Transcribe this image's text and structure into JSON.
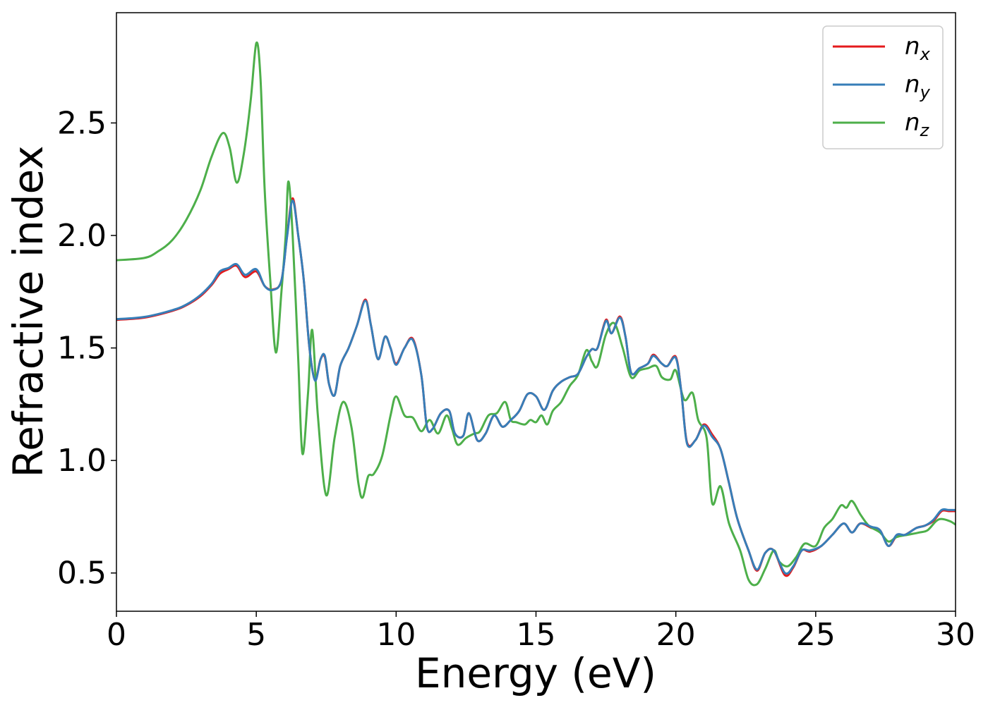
{
  "chart_data": {
    "type": "line",
    "xlabel": "Energy (eV)",
    "ylabel": "Refractive index",
    "xlim": [
      0,
      30
    ],
    "ylim": [
      0.33,
      2.99
    ],
    "xticks": [
      0,
      5,
      10,
      15,
      20,
      25,
      30
    ],
    "xtick_labels": [
      "0",
      "5",
      "10",
      "15",
      "20",
      "25",
      "30"
    ],
    "yticks": [
      0.5,
      1.0,
      1.5,
      2.0,
      2.5
    ],
    "ytick_labels": [
      "0.5",
      "1.0",
      "1.5",
      "2.0",
      "2.5"
    ],
    "grid": false,
    "legend_position": "top-right",
    "series": [
      {
        "name": "n_x",
        "label_main": "n",
        "label_sub": "x",
        "color": "#e41a1c",
        "points": [
          [
            0,
            1.625
          ],
          [
            1,
            1.635
          ],
          [
            2,
            1.665
          ],
          [
            2.5,
            1.69
          ],
          [
            3,
            1.73
          ],
          [
            3.4,
            1.78
          ],
          [
            3.7,
            1.83
          ],
          [
            4.0,
            1.85
          ],
          [
            4.3,
            1.865
          ],
          [
            4.6,
            1.815
          ],
          [
            5.0,
            1.84
          ],
          [
            5.3,
            1.775
          ],
          [
            5.6,
            1.76
          ],
          [
            5.9,
            1.8
          ],
          [
            6.1,
            2.0
          ],
          [
            6.3,
            2.165
          ],
          [
            6.5,
            2.0
          ],
          [
            6.7,
            1.8
          ],
          [
            6.9,
            1.5
          ],
          [
            7.1,
            1.36
          ],
          [
            7.3,
            1.45
          ],
          [
            7.45,
            1.46
          ],
          [
            7.6,
            1.34
          ],
          [
            7.8,
            1.29
          ],
          [
            8.0,
            1.42
          ],
          [
            8.3,
            1.5
          ],
          [
            8.6,
            1.6
          ],
          [
            8.9,
            1.715
          ],
          [
            9.1,
            1.6
          ],
          [
            9.35,
            1.45
          ],
          [
            9.6,
            1.55
          ],
          [
            9.8,
            1.5
          ],
          [
            10.0,
            1.43
          ],
          [
            10.3,
            1.5
          ],
          [
            10.6,
            1.54
          ],
          [
            10.9,
            1.38
          ],
          [
            11.1,
            1.15
          ],
          [
            11.3,
            1.14
          ],
          [
            11.6,
            1.21
          ],
          [
            11.9,
            1.22
          ],
          [
            12.1,
            1.12
          ],
          [
            12.4,
            1.11
          ],
          [
            12.6,
            1.21
          ],
          [
            12.9,
            1.09
          ],
          [
            13.2,
            1.12
          ],
          [
            13.5,
            1.2
          ],
          [
            13.8,
            1.15
          ],
          [
            14.1,
            1.18
          ],
          [
            14.4,
            1.22
          ],
          [
            14.7,
            1.295
          ],
          [
            15.0,
            1.285
          ],
          [
            15.3,
            1.225
          ],
          [
            15.6,
            1.31
          ],
          [
            15.9,
            1.35
          ],
          [
            16.2,
            1.37
          ],
          [
            16.5,
            1.385
          ],
          [
            16.8,
            1.46
          ],
          [
            17.0,
            1.495
          ],
          [
            17.2,
            1.5
          ],
          [
            17.5,
            1.625
          ],
          [
            17.7,
            1.565
          ],
          [
            18.0,
            1.64
          ],
          [
            18.2,
            1.55
          ],
          [
            18.4,
            1.39
          ],
          [
            18.7,
            1.41
          ],
          [
            19.0,
            1.43
          ],
          [
            19.2,
            1.47
          ],
          [
            19.5,
            1.43
          ],
          [
            19.7,
            1.42
          ],
          [
            20.0,
            1.46
          ],
          [
            20.2,
            1.3
          ],
          [
            20.4,
            1.08
          ],
          [
            20.7,
            1.09
          ],
          [
            21.0,
            1.16
          ],
          [
            21.3,
            1.115
          ],
          [
            21.6,
            1.05
          ],
          [
            21.9,
            0.9
          ],
          [
            22.2,
            0.74
          ],
          [
            22.6,
            0.6
          ],
          [
            22.9,
            0.51
          ],
          [
            23.2,
            0.59
          ],
          [
            23.5,
            0.6
          ],
          [
            23.9,
            0.49
          ],
          [
            24.2,
            0.525
          ],
          [
            24.5,
            0.6
          ],
          [
            24.8,
            0.595
          ],
          [
            25.2,
            0.62
          ],
          [
            25.6,
            0.67
          ],
          [
            26.0,
            0.72
          ],
          [
            26.3,
            0.68
          ],
          [
            26.6,
            0.72
          ],
          [
            27.0,
            0.7
          ],
          [
            27.3,
            0.69
          ],
          [
            27.6,
            0.62
          ],
          [
            27.9,
            0.665
          ],
          [
            28.2,
            0.67
          ],
          [
            28.6,
            0.7
          ],
          [
            28.9,
            0.71
          ],
          [
            29.2,
            0.73
          ],
          [
            29.5,
            0.775
          ],
          [
            29.75,
            0.775
          ],
          [
            30,
            0.775
          ]
        ]
      },
      {
        "name": "n_y",
        "label_main": "n",
        "label_sub": "y",
        "color": "#377eb8",
        "points": [
          [
            0,
            1.628
          ],
          [
            1,
            1.638
          ],
          [
            2,
            1.668
          ],
          [
            2.5,
            1.693
          ],
          [
            3,
            1.735
          ],
          [
            3.4,
            1.785
          ],
          [
            3.7,
            1.84
          ],
          [
            4.0,
            1.855
          ],
          [
            4.3,
            1.872
          ],
          [
            4.6,
            1.825
          ],
          [
            5.0,
            1.85
          ],
          [
            5.3,
            1.775
          ],
          [
            5.6,
            1.758
          ],
          [
            5.9,
            1.8
          ],
          [
            6.1,
            1.995
          ],
          [
            6.3,
            2.155
          ],
          [
            6.5,
            2.0
          ],
          [
            6.7,
            1.8
          ],
          [
            6.9,
            1.5
          ],
          [
            7.1,
            1.355
          ],
          [
            7.3,
            1.45
          ],
          [
            7.45,
            1.465
          ],
          [
            7.6,
            1.34
          ],
          [
            7.8,
            1.29
          ],
          [
            8.0,
            1.42
          ],
          [
            8.3,
            1.5
          ],
          [
            8.6,
            1.6
          ],
          [
            8.9,
            1.71
          ],
          [
            9.1,
            1.6
          ],
          [
            9.35,
            1.45
          ],
          [
            9.6,
            1.55
          ],
          [
            9.8,
            1.5
          ],
          [
            10.0,
            1.425
          ],
          [
            10.3,
            1.5
          ],
          [
            10.6,
            1.535
          ],
          [
            10.9,
            1.38
          ],
          [
            11.1,
            1.15
          ],
          [
            11.3,
            1.14
          ],
          [
            11.6,
            1.21
          ],
          [
            11.9,
            1.22
          ],
          [
            12.1,
            1.12
          ],
          [
            12.4,
            1.11
          ],
          [
            12.6,
            1.21
          ],
          [
            12.9,
            1.09
          ],
          [
            13.2,
            1.12
          ],
          [
            13.5,
            1.2
          ],
          [
            13.8,
            1.15
          ],
          [
            14.1,
            1.18
          ],
          [
            14.4,
            1.22
          ],
          [
            14.7,
            1.295
          ],
          [
            15.0,
            1.285
          ],
          [
            15.3,
            1.225
          ],
          [
            15.6,
            1.31
          ],
          [
            15.9,
            1.35
          ],
          [
            16.2,
            1.37
          ],
          [
            16.5,
            1.385
          ],
          [
            16.8,
            1.46
          ],
          [
            17.0,
            1.495
          ],
          [
            17.2,
            1.5
          ],
          [
            17.5,
            1.62
          ],
          [
            17.7,
            1.565
          ],
          [
            18.0,
            1.635
          ],
          [
            18.2,
            1.55
          ],
          [
            18.4,
            1.39
          ],
          [
            18.7,
            1.41
          ],
          [
            19.0,
            1.43
          ],
          [
            19.2,
            1.465
          ],
          [
            19.5,
            1.43
          ],
          [
            19.7,
            1.42
          ],
          [
            20.0,
            1.455
          ],
          [
            20.2,
            1.3
          ],
          [
            20.4,
            1.075
          ],
          [
            20.7,
            1.09
          ],
          [
            21.0,
            1.155
          ],
          [
            21.3,
            1.105
          ],
          [
            21.6,
            1.05
          ],
          [
            21.9,
            0.9
          ],
          [
            22.2,
            0.74
          ],
          [
            22.6,
            0.6
          ],
          [
            22.9,
            0.515
          ],
          [
            23.2,
            0.59
          ],
          [
            23.5,
            0.6
          ],
          [
            23.9,
            0.5
          ],
          [
            24.2,
            0.53
          ],
          [
            24.5,
            0.6
          ],
          [
            24.8,
            0.6
          ],
          [
            25.2,
            0.62
          ],
          [
            25.6,
            0.67
          ],
          [
            26.0,
            0.72
          ],
          [
            26.3,
            0.68
          ],
          [
            26.6,
            0.72
          ],
          [
            27.0,
            0.705
          ],
          [
            27.3,
            0.69
          ],
          [
            27.6,
            0.62
          ],
          [
            27.9,
            0.67
          ],
          [
            28.2,
            0.67
          ],
          [
            28.6,
            0.7
          ],
          [
            28.9,
            0.71
          ],
          [
            29.2,
            0.735
          ],
          [
            29.5,
            0.78
          ],
          [
            29.75,
            0.78
          ],
          [
            30,
            0.78
          ]
        ]
      },
      {
        "name": "n_z",
        "label_main": "n",
        "label_sub": "z",
        "color": "#4daf4a",
        "points": [
          [
            0,
            1.89
          ],
          [
            1,
            1.9
          ],
          [
            1.5,
            1.93
          ],
          [
            2,
            1.98
          ],
          [
            2.5,
            2.07
          ],
          [
            3,
            2.2
          ],
          [
            3.4,
            2.35
          ],
          [
            3.8,
            2.455
          ],
          [
            4.05,
            2.39
          ],
          [
            4.3,
            2.235
          ],
          [
            4.55,
            2.36
          ],
          [
            4.8,
            2.6
          ],
          [
            5.0,
            2.855
          ],
          [
            5.15,
            2.7
          ],
          [
            5.3,
            2.2
          ],
          [
            5.5,
            1.8
          ],
          [
            5.7,
            1.48
          ],
          [
            5.9,
            1.75
          ],
          [
            6.05,
            2.0
          ],
          [
            6.15,
            2.24
          ],
          [
            6.3,
            2.0
          ],
          [
            6.5,
            1.45
          ],
          [
            6.65,
            1.03
          ],
          [
            6.85,
            1.3
          ],
          [
            7.0,
            1.58
          ],
          [
            7.2,
            1.2
          ],
          [
            7.5,
            0.845
          ],
          [
            7.8,
            1.1
          ],
          [
            8.1,
            1.26
          ],
          [
            8.4,
            1.15
          ],
          [
            8.65,
            0.9
          ],
          [
            8.8,
            0.835
          ],
          [
            9.0,
            0.93
          ],
          [
            9.2,
            0.94
          ],
          [
            9.5,
            1.02
          ],
          [
            9.8,
            1.2
          ],
          [
            10.0,
            1.285
          ],
          [
            10.3,
            1.2
          ],
          [
            10.6,
            1.19
          ],
          [
            10.9,
            1.13
          ],
          [
            11.2,
            1.18
          ],
          [
            11.5,
            1.12
          ],
          [
            11.8,
            1.2
          ],
          [
            12.0,
            1.14
          ],
          [
            12.2,
            1.07
          ],
          [
            12.5,
            1.1
          ],
          [
            12.8,
            1.12
          ],
          [
            13.0,
            1.13
          ],
          [
            13.3,
            1.2
          ],
          [
            13.6,
            1.21
          ],
          [
            13.9,
            1.26
          ],
          [
            14.1,
            1.18
          ],
          [
            14.3,
            1.17
          ],
          [
            14.6,
            1.16
          ],
          [
            14.8,
            1.18
          ],
          [
            15.0,
            1.17
          ],
          [
            15.2,
            1.2
          ],
          [
            15.4,
            1.16
          ],
          [
            15.6,
            1.22
          ],
          [
            15.9,
            1.26
          ],
          [
            16.2,
            1.33
          ],
          [
            16.5,
            1.38
          ],
          [
            16.8,
            1.49
          ],
          [
            17.0,
            1.44
          ],
          [
            17.2,
            1.42
          ],
          [
            17.5,
            1.56
          ],
          [
            17.8,
            1.61
          ],
          [
            18.1,
            1.5
          ],
          [
            18.4,
            1.37
          ],
          [
            18.7,
            1.4
          ],
          [
            19.0,
            1.41
          ],
          [
            19.3,
            1.42
          ],
          [
            19.5,
            1.37
          ],
          [
            19.8,
            1.36
          ],
          [
            20.0,
            1.4
          ],
          [
            20.3,
            1.27
          ],
          [
            20.6,
            1.3
          ],
          [
            20.8,
            1.18
          ],
          [
            21.1,
            1.1
          ],
          [
            21.3,
            0.81
          ],
          [
            21.6,
            0.885
          ],
          [
            21.9,
            0.72
          ],
          [
            22.3,
            0.6
          ],
          [
            22.6,
            0.47
          ],
          [
            22.9,
            0.45
          ],
          [
            23.2,
            0.52
          ],
          [
            23.5,
            0.6
          ],
          [
            23.7,
            0.55
          ],
          [
            24.0,
            0.53
          ],
          [
            24.3,
            0.57
          ],
          [
            24.6,
            0.63
          ],
          [
            25.0,
            0.62
          ],
          [
            25.3,
            0.7
          ],
          [
            25.6,
            0.74
          ],
          [
            25.9,
            0.8
          ],
          [
            26.1,
            0.79
          ],
          [
            26.3,
            0.82
          ],
          [
            26.6,
            0.76
          ],
          [
            26.9,
            0.71
          ],
          [
            27.3,
            0.68
          ],
          [
            27.6,
            0.64
          ],
          [
            27.9,
            0.66
          ],
          [
            28.3,
            0.67
          ],
          [
            28.7,
            0.68
          ],
          [
            29.0,
            0.69
          ],
          [
            29.3,
            0.73
          ],
          [
            29.5,
            0.74
          ],
          [
            29.8,
            0.73
          ],
          [
            30,
            0.715
          ]
        ]
      }
    ]
  }
}
